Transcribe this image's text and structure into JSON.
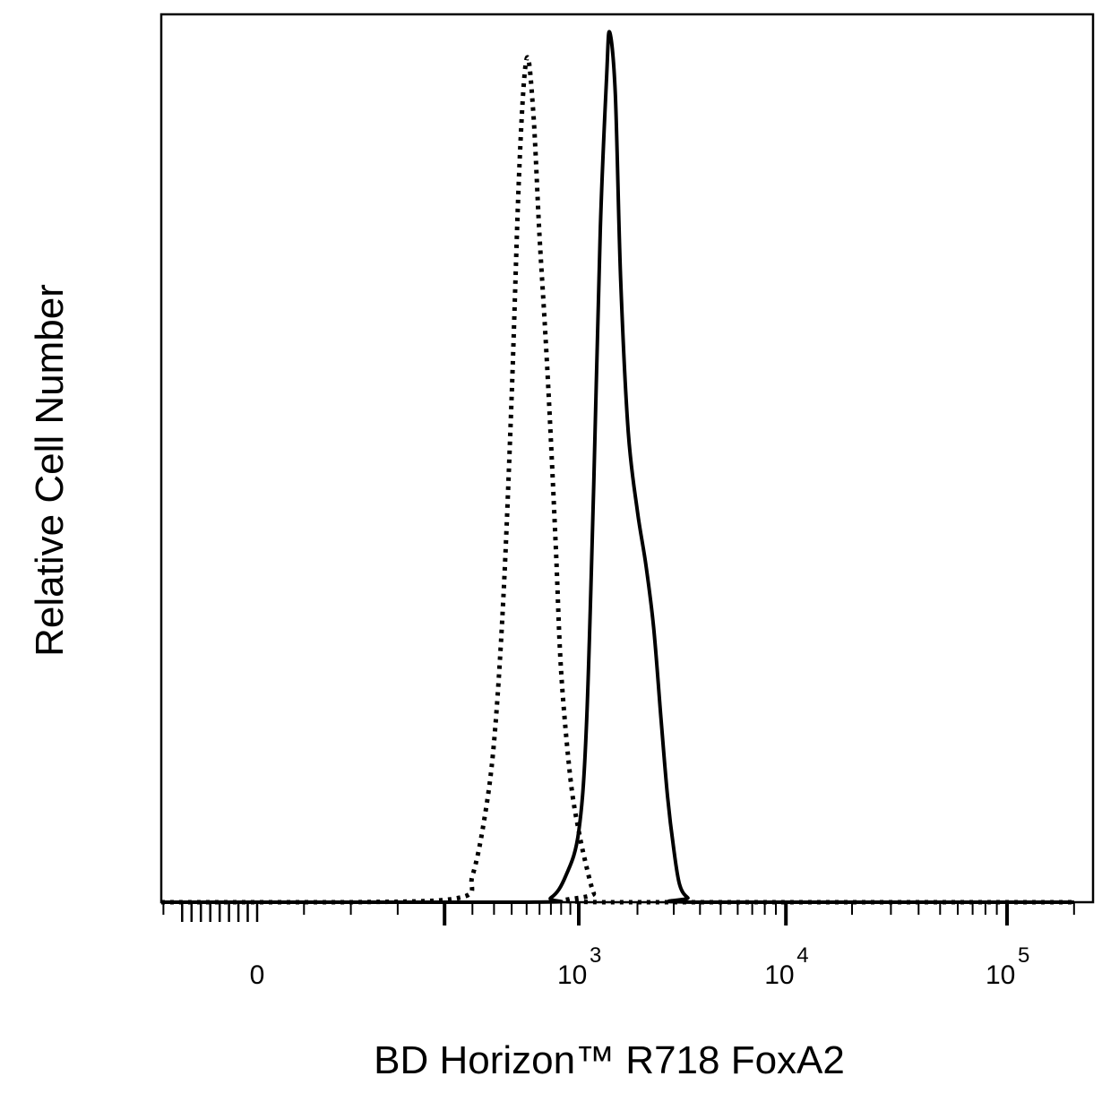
{
  "chart_data": {
    "type": "line",
    "title": "",
    "xlabel": "BD Horizon™ R718 FoxA2",
    "ylabel": "Relative Cell Number",
    "x_scale": "biexponential",
    "xlim": [
      -300,
      200000
    ],
    "ylim": [
      0,
      100
    ],
    "grid": false,
    "legend": "none",
    "x_tick_labels": [
      {
        "value": 0,
        "base": "0",
        "exp": ""
      },
      {
        "value": 1000,
        "base": "10",
        "exp": "3"
      },
      {
        "value": 10000,
        "base": "10",
        "exp": "4"
      },
      {
        "value": 100000,
        "base": "10",
        "exp": "5"
      }
    ],
    "series": [
      {
        "style": "dotted",
        "points": [
          [
            -300,
            0
          ],
          [
            50,
            0
          ],
          [
            150,
            0.5
          ],
          [
            200,
            3
          ],
          [
            250,
            9
          ],
          [
            300,
            18
          ],
          [
            350,
            34
          ],
          [
            400,
            57
          ],
          [
            450,
            83
          ],
          [
            500,
            95
          ],
          [
            550,
            89
          ],
          [
            600,
            75
          ],
          [
            650,
            64
          ],
          [
            700,
            52
          ],
          [
            750,
            39
          ],
          [
            800,
            26
          ],
          [
            900,
            14
          ],
          [
            1000,
            8
          ],
          [
            1100,
            4
          ],
          [
            1200,
            1
          ],
          [
            1300,
            0
          ],
          [
            200000,
            0
          ]
        ]
      },
      {
        "style": "solid",
        "points": [
          [
            -300,
            0
          ],
          [
            500,
            0
          ],
          [
            700,
            0.5
          ],
          [
            850,
            3
          ],
          [
            1000,
            8
          ],
          [
            1100,
            20
          ],
          [
            1200,
            47
          ],
          [
            1300,
            76
          ],
          [
            1400,
            93
          ],
          [
            1450,
            98
          ],
          [
            1550,
            91
          ],
          [
            1650,
            70
          ],
          [
            1800,
            53
          ],
          [
            2000,
            44
          ],
          [
            2200,
            38
          ],
          [
            2400,
            31
          ],
          [
            2600,
            21
          ],
          [
            2800,
            12
          ],
          [
            3000,
            6
          ],
          [
            3200,
            2
          ],
          [
            3500,
            0.5
          ],
          [
            4000,
            0
          ],
          [
            200000,
            0
          ]
        ]
      }
    ]
  }
}
